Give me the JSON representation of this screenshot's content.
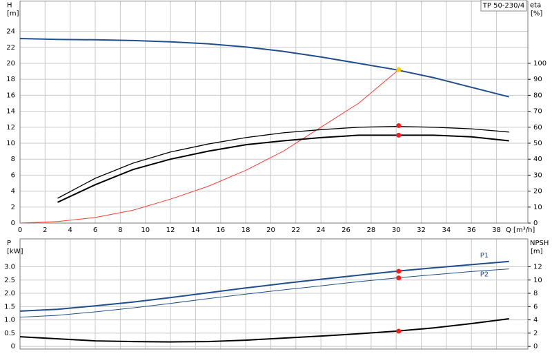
{
  "chart_data": [
    {
      "type": "line",
      "title": "TP 50-230/4",
      "ylabel": "H",
      "yunit": "[m]",
      "y2label": "eta",
      "y2unit": "[%]",
      "xlabel": "Q [m³/h]",
      "xlim": [
        0,
        40.5
      ],
      "xticks": [
        0,
        2,
        4,
        6,
        8,
        10,
        12,
        14,
        16,
        18,
        20,
        22,
        24,
        26,
        28,
        30,
        32,
        34,
        36,
        38
      ],
      "ylim": [
        0,
        27.8
      ],
      "yticks": [
        0,
        2,
        4,
        6,
        8,
        10,
        12,
        14,
        16,
        18,
        20,
        22,
        24
      ],
      "y2lim": [
        0,
        139
      ],
      "y2ticks": [
        0,
        10,
        20,
        30,
        40,
        50,
        60,
        70,
        80,
        90,
        100
      ],
      "grid": true,
      "xtick_labels": true,
      "series": [
        {
          "color": "#1f4e8c",
          "line_width": 2,
          "x": [
            0,
            3,
            6,
            9,
            12,
            15,
            18,
            21,
            24,
            27,
            30,
            33,
            36,
            39
          ],
          "values": [
            23.1,
            23.0,
            22.95,
            22.85,
            22.7,
            22.45,
            22.05,
            21.5,
            20.8,
            20.0,
            19.2,
            18.2,
            17.0,
            15.8
          ]
        },
        {
          "color": "#ff3b30",
          "line_width": 1,
          "axis": "y2",
          "x": [
            0,
            3,
            6,
            9,
            12,
            15,
            18,
            21,
            24,
            27,
            30.2
          ],
          "values": [
            0,
            1,
            3.5,
            8,
            15,
            23,
            33,
            45,
            60,
            75,
            96
          ]
        },
        {
          "color": "#000000",
          "line_width": 1.3,
          "axis": "y2",
          "x": [
            3,
            6,
            9,
            12,
            15,
            18,
            21,
            24,
            27,
            30,
            33,
            36,
            39
          ],
          "values": [
            15.5,
            28,
            37.5,
            44.5,
            49.5,
            53.5,
            56.5,
            58.5,
            60,
            60.5,
            60,
            59,
            57
          ]
        },
        {
          "color": "#000000",
          "line_width": 2,
          "axis": "y2",
          "x": [
            3,
            6,
            9,
            12,
            15,
            18,
            21,
            24,
            27,
            30,
            33,
            36,
            39
          ],
          "values": [
            13,
            24,
            33.5,
            40,
            45,
            49,
            51.5,
            53.5,
            55,
            55,
            55,
            54,
            51.5
          ]
        },
        {
          "color": "#ff1a1a",
          "marker": true,
          "axis": "y2",
          "x": [
            30.2,
            30.2
          ],
          "values": [
            61,
            55
          ]
        },
        {
          "color": "#ffcc00",
          "marker": true,
          "x": [
            30.2
          ],
          "values": [
            19.2
          ]
        }
      ]
    },
    {
      "type": "line",
      "ylabel": "P",
      "yunit": "[kW]",
      "y2label": "NPSH",
      "y2unit": "[m]",
      "xlim": [
        0,
        40.5
      ],
      "xticks": [
        0,
        2,
        4,
        6,
        8,
        10,
        12,
        14,
        16,
        18,
        20,
        22,
        24,
        26,
        28,
        30,
        32,
        34,
        36,
        38
      ],
      "ylim": [
        -0.1,
        4.05
      ],
      "yticks": [
        0,
        0.5,
        {
          "value": 1,
          "label": "1.0"
        },
        1.5,
        {
          "value": 2,
          "label": "2.0"
        },
        2.5,
        {
          "value": 3,
          "label": "3.0"
        }
      ],
      "y2lim": [
        -0.4,
        16.2
      ],
      "y2ticks": [
        0,
        2,
        4,
        6,
        8,
        10,
        12
      ],
      "grid": true,
      "xtick_labels": false,
      "series": [
        {
          "name": "P1",
          "color": "#1f4e8c",
          "line_width": 2,
          "x": [
            0,
            3,
            6,
            9,
            12,
            15,
            18,
            21,
            24,
            27,
            30,
            33,
            36,
            39
          ],
          "values": [
            1.33,
            1.4,
            1.53,
            1.67,
            1.84,
            2.02,
            2.2,
            2.37,
            2.53,
            2.68,
            2.83,
            2.96,
            3.08,
            3.2
          ]
        },
        {
          "name": "P2",
          "color": "#1f4e8c",
          "line_width": 1,
          "x": [
            0,
            3,
            6,
            9,
            12,
            15,
            18,
            21,
            24,
            27,
            30,
            33,
            36,
            39
          ],
          "values": [
            1.1,
            1.17,
            1.3,
            1.45,
            1.62,
            1.8,
            1.97,
            2.13,
            2.28,
            2.44,
            2.58,
            2.7,
            2.82,
            2.92
          ]
        },
        {
          "color": "#000000",
          "line_width": 2,
          "axis": "y2",
          "x": [
            0,
            3,
            6,
            9,
            12,
            15,
            18,
            21,
            24,
            27,
            30,
            33,
            36,
            39
          ],
          "values": [
            1.46,
            1.15,
            0.83,
            0.73,
            0.68,
            0.73,
            0.94,
            1.25,
            1.56,
            1.9,
            2.3,
            2.8,
            3.44,
            4.17
          ]
        },
        {
          "color": "#ff1a1a",
          "marker": true,
          "x": [
            30.2,
            30.2
          ],
          "values": [
            2.83,
            2.58
          ]
        },
        {
          "color": "#ff1a1a",
          "marker": true,
          "axis": "y2",
          "x": [
            30.2
          ],
          "values": [
            2.3
          ]
        }
      ]
    }
  ]
}
